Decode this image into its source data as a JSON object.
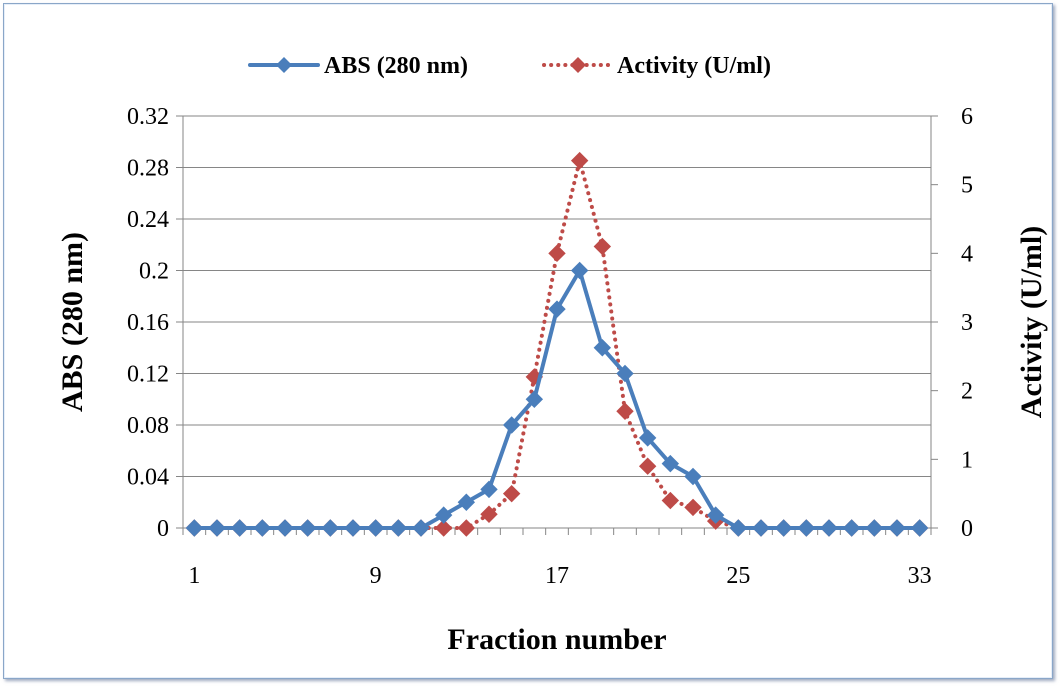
{
  "chart_data": {
    "type": "line",
    "x": [
      1,
      2,
      3,
      4,
      5,
      6,
      7,
      8,
      9,
      10,
      11,
      12,
      13,
      14,
      15,
      16,
      17,
      18,
      19,
      20,
      21,
      22,
      23,
      24,
      25,
      26,
      27,
      28,
      29,
      30,
      31,
      32,
      33
    ],
    "x_ticks": [
      "1",
      "9",
      "17",
      "25",
      "33"
    ],
    "xlabel": "Fraction number",
    "ylabel_left": "ABS (280 nm)",
    "ylabel_right": "Activity (U/ml)",
    "ylim_left": [
      0,
      0.32
    ],
    "ylim_right": [
      0,
      6
    ],
    "yticks_left": [
      "0",
      "0.04",
      "0.08",
      "0.12",
      "0.16",
      "0.2",
      "0.24",
      "0.28",
      "0.32"
    ],
    "yticks_right": [
      "0",
      "1",
      "2",
      "3",
      "4",
      "5",
      "6"
    ],
    "grid": true,
    "legend_position": "top",
    "series": [
      {
        "name": "ABS (280 nm)",
        "axis": "left",
        "style": "solid",
        "color": "#4a7ebb",
        "marker": "diamond",
        "values": [
          0,
          0,
          0,
          0,
          0,
          0,
          0,
          0,
          0,
          0,
          0,
          0.01,
          0.02,
          0.03,
          0.08,
          0.1,
          0.17,
          0.2,
          0.14,
          0.12,
          0.07,
          0.05,
          0.04,
          0.01,
          0,
          0,
          0,
          0,
          0,
          0,
          0,
          0,
          0
        ]
      },
      {
        "name": "Activity (U/ml)",
        "axis": "right",
        "style": "dotted",
        "color": "#be4b48",
        "marker": "diamond",
        "values": [
          0,
          0,
          0,
          0,
          0,
          0,
          0,
          0,
          0,
          0,
          0,
          0,
          0,
          0.2,
          0.5,
          2.2,
          4.0,
          5.35,
          4.1,
          1.7,
          0.9,
          0.4,
          0.3,
          0.1,
          0,
          0,
          0,
          0,
          0,
          0,
          0,
          0,
          0
        ]
      }
    ]
  }
}
